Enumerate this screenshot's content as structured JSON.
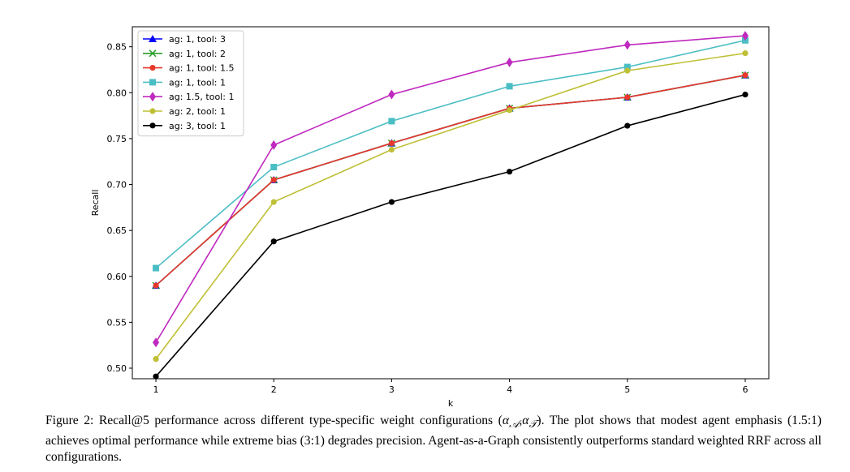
{
  "chart_data": {
    "type": "line",
    "title": "",
    "xlabel": "k",
    "ylabel": "Recall",
    "x": [
      1,
      2,
      3,
      4,
      5,
      6
    ],
    "xlim": [
      0.8,
      6.2
    ],
    "ylim": [
      0.4885,
      0.8718
    ],
    "yticks": [
      0.5,
      0.55,
      0.6,
      0.65,
      0.7,
      0.75,
      0.8,
      0.85
    ],
    "ytick_labels": [
      "0.50",
      "0.55",
      "0.60",
      "0.65",
      "0.70",
      "0.75",
      "0.80",
      "0.85"
    ],
    "xtick_labels": [
      "1",
      "2",
      "3",
      "4",
      "5",
      "6"
    ],
    "grid": false,
    "legend_position": "top-left",
    "series": [
      {
        "name": "ag: 1, tool: 3",
        "color": "#0000ff",
        "marker": "triangle",
        "values": [
          0.59,
          0.705,
          0.745,
          0.783,
          0.795,
          0.819
        ]
      },
      {
        "name": "ag: 1, tool: 2",
        "color": "#2ca02c",
        "marker": "x",
        "values": [
          0.59,
          0.705,
          0.745,
          0.783,
          0.795,
          0.819
        ]
      },
      {
        "name": "ag: 1, tool: 1.5",
        "color": "#e8382c",
        "marker": "circle",
        "values": [
          0.59,
          0.705,
          0.745,
          0.783,
          0.795,
          0.819
        ]
      },
      {
        "name": "ag: 1, tool: 1",
        "color": "#4bbec4",
        "marker": "square",
        "values": [
          0.609,
          0.719,
          0.769,
          0.807,
          0.828,
          0.857
        ]
      },
      {
        "name": "ag: 1.5, tool: 1",
        "color": "#bf29bf",
        "marker": "diamond",
        "values": [
          0.528,
          0.743,
          0.798,
          0.833,
          0.852,
          0.862
        ]
      },
      {
        "name": "ag: 2, tool: 1",
        "color": "#bfbf36",
        "marker": "circle",
        "values": [
          0.51,
          0.681,
          0.738,
          0.781,
          0.824,
          0.843
        ]
      },
      {
        "name": "ag: 3, tool: 1",
        "color": "#000000",
        "marker": "circle",
        "values": [
          0.491,
          0.638,
          0.681,
          0.714,
          0.764,
          0.798
        ]
      }
    ]
  },
  "caption": {
    "lead": "Figure 2: Recall@5 performance across different type-specific weight configurations (",
    "alpha_a": "α",
    "sub_a": "𝒜",
    "comma": ",",
    "alpha_t": "α",
    "sub_t": "𝒯",
    "rest": "). The plot shows that modest agent emphasis (1.5:1) achieves optimal performance while extreme bias (3:1) degrades precision. Agent-as-a-Graph consistently outperforms standard weighted RRF across all configurations."
  }
}
